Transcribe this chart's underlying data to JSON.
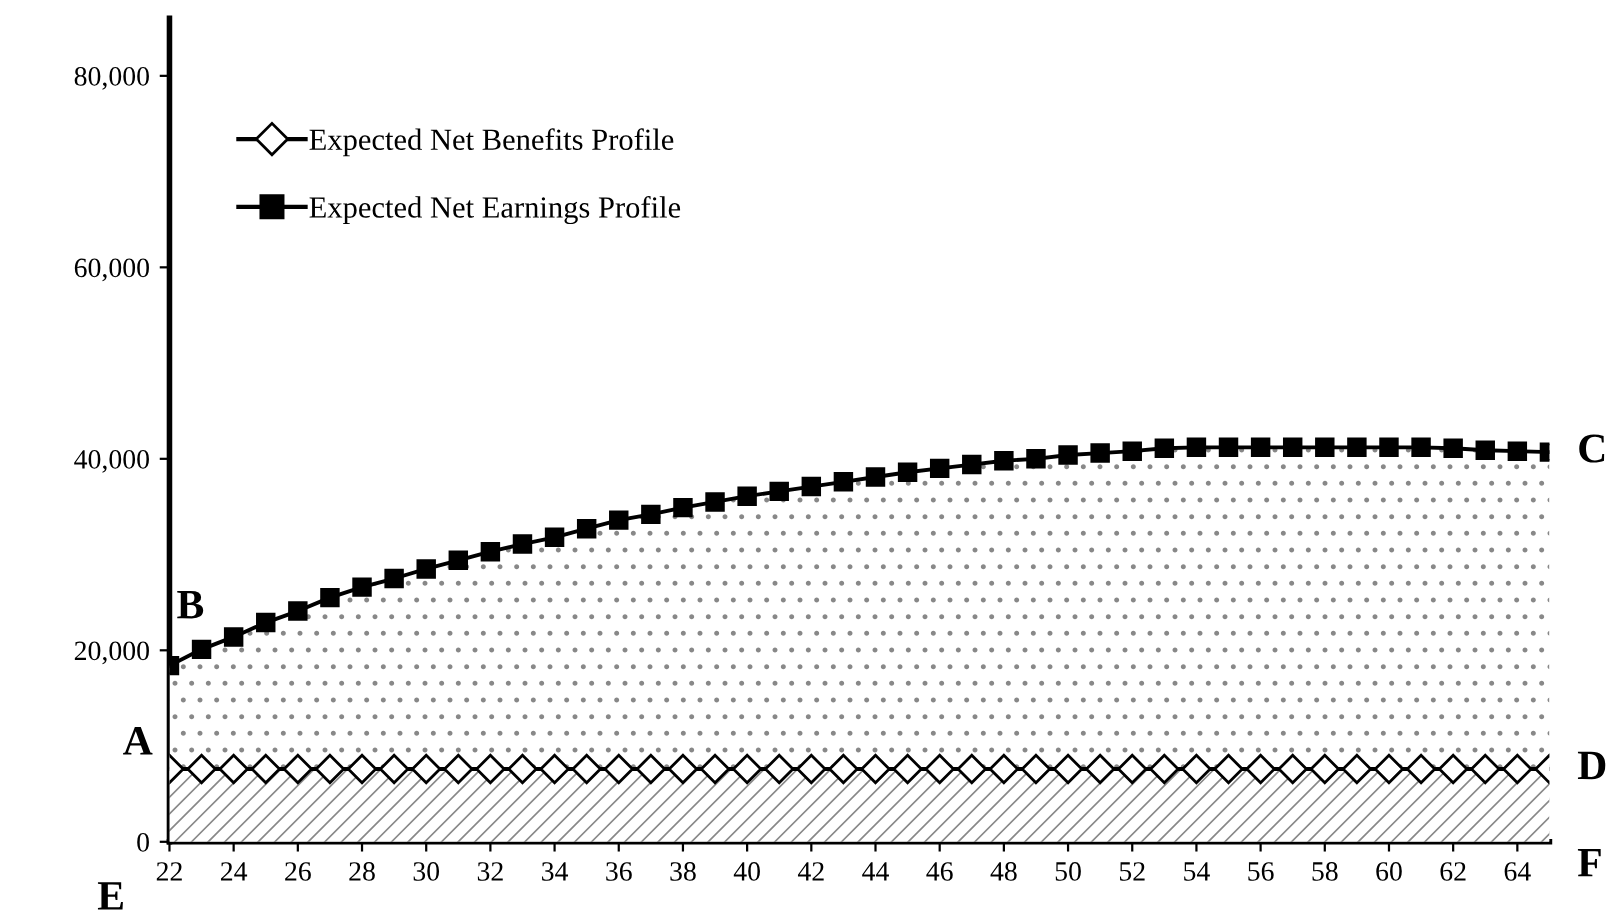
{
  "chart_data": {
    "type": "area",
    "x": [
      22,
      23,
      24,
      25,
      26,
      27,
      28,
      29,
      30,
      31,
      32,
      33,
      34,
      35,
      36,
      37,
      38,
      39,
      40,
      41,
      42,
      43,
      44,
      45,
      46,
      47,
      48,
      49,
      50,
      51,
      52,
      53,
      54,
      55,
      56,
      57,
      58,
      59,
      60,
      61,
      62,
      63,
      64,
      65
    ],
    "series": [
      {
        "name": "Expected Net Benefits Profile",
        "color": "#000000",
        "marker": "diamond",
        "values": [
          7600,
          7600,
          7600,
          7600,
          7600,
          7600,
          7600,
          7600,
          7600,
          7600,
          7600,
          7600,
          7600,
          7600,
          7600,
          7600,
          7600,
          7600,
          7600,
          7600,
          7600,
          7600,
          7600,
          7600,
          7600,
          7600,
          7600,
          7600,
          7600,
          7600,
          7600,
          7600,
          7600,
          7600,
          7600,
          7600,
          7600,
          7600,
          7600,
          7600,
          7600,
          7600,
          7600,
          7600
        ]
      },
      {
        "name": "Expected Net Earnings Profile",
        "color": "#000000",
        "marker": "square",
        "values": [
          18400,
          20100,
          21400,
          22900,
          24100,
          25500,
          26600,
          27500,
          28500,
          29400,
          30300,
          31100,
          31800,
          32700,
          33600,
          34200,
          34900,
          35500,
          36100,
          36600,
          37100,
          37600,
          38100,
          38600,
          39000,
          39400,
          39800,
          40000,
          40400,
          40600,
          40800,
          41100,
          41200,
          41200,
          41200,
          41200,
          41200,
          41200,
          41200,
          41200,
          41100,
          40900,
          40800,
          40700
        ]
      }
    ],
    "xlim": [
      22,
      65
    ],
    "xticks": [
      22,
      24,
      26,
      28,
      30,
      32,
      34,
      36,
      38,
      40,
      42,
      44,
      46,
      48,
      50,
      52,
      54,
      56,
      58,
      60,
      62,
      64
    ],
    "ylim": [
      0,
      86000
    ],
    "yticks": [
      {
        "value": 0,
        "label": "0"
      },
      {
        "value": 20000,
        "label": "20,000"
      },
      {
        "value": 40000,
        "label": "40,000"
      },
      {
        "value": 60000,
        "label": "60,000"
      },
      {
        "value": 80000,
        "label": "80,000"
      }
    ],
    "grid": false,
    "legend": "top left",
    "line_style": "solid",
    "annotations": [
      {
        "text": "A",
        "x": 22,
        "y": 7600
      },
      {
        "text": "B",
        "x": 23,
        "y": 20100
      },
      {
        "text": "C",
        "x": 65,
        "y": 40700
      },
      {
        "text": "D",
        "x": 65,
        "y": 7600
      },
      {
        "text": "E",
        "x": 22,
        "y": 0
      },
      {
        "text": "F",
        "x": 65,
        "y": 0
      }
    ]
  }
}
